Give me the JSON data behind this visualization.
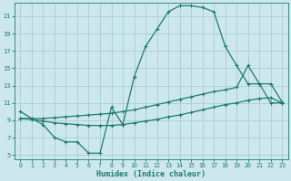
{
  "xlabel": "Humidex (Indice chaleur)",
  "bg_color": "#cce8ec",
  "grid_color": "#aacdd4",
  "line_color": "#1e7b6e",
  "xlim": [
    -0.5,
    23.5
  ],
  "ylim": [
    4.5,
    22.5
  ],
  "xticks": [
    0,
    1,
    2,
    3,
    4,
    5,
    6,
    7,
    8,
    9,
    10,
    11,
    12,
    13,
    14,
    15,
    16,
    17,
    18,
    19,
    20,
    21,
    22,
    23
  ],
  "yticks": [
    5,
    7,
    9,
    11,
    13,
    15,
    17,
    19,
    21
  ],
  "line1_x": [
    0,
    1,
    2,
    3,
    4,
    5,
    6,
    7,
    8,
    9,
    10,
    11,
    12,
    13,
    14,
    15,
    16,
    17,
    18,
    19,
    20,
    21,
    22,
    23
  ],
  "line1_y": [
    10.0,
    9.2,
    8.5,
    7.0,
    6.5,
    6.5,
    5.2,
    5.2,
    10.5,
    8.5,
    14.0,
    17.5,
    19.5,
    21.5,
    22.2,
    22.2,
    22.0,
    21.5,
    17.5,
    15.3,
    13.2,
    13.2,
    11.0,
    11.0
  ],
  "line2_x": [
    0,
    1,
    2,
    3,
    4,
    5,
    6,
    7,
    8,
    9,
    10,
    11,
    12,
    13,
    14,
    15,
    16,
    17,
    18,
    19,
    20,
    21,
    22,
    23
  ],
  "line2_y": [
    9.2,
    9.2,
    9.2,
    9.3,
    9.4,
    9.5,
    9.6,
    9.7,
    9.8,
    10.0,
    10.2,
    10.5,
    10.8,
    11.1,
    11.4,
    11.7,
    12.0,
    12.3,
    12.5,
    12.8,
    15.3,
    13.2,
    13.2,
    11.1
  ],
  "line3_x": [
    0,
    1,
    2,
    3,
    4,
    5,
    6,
    7,
    8,
    9,
    10,
    11,
    12,
    13,
    14,
    15,
    16,
    17,
    18,
    19,
    20,
    21,
    22,
    23
  ],
  "line3_y": [
    9.2,
    9.1,
    8.9,
    8.7,
    8.6,
    8.5,
    8.4,
    8.4,
    8.4,
    8.5,
    8.7,
    8.9,
    9.1,
    9.4,
    9.6,
    9.9,
    10.2,
    10.5,
    10.8,
    11.0,
    11.3,
    11.5,
    11.6,
    11.0
  ]
}
